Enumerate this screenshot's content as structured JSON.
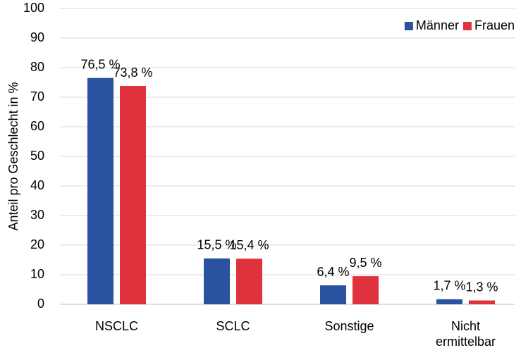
{
  "chart_data": {
    "type": "bar",
    "y_label": "Anteil pro Geschlecht in %",
    "categories": [
      "NSCLC",
      "SCLC",
      "Sonstige",
      "Nicht ermittelbar"
    ],
    "series": [
      {
        "name": "Männer",
        "color": "#2a52a0",
        "values": [
          76.5,
          15.5,
          6.4,
          1.7
        ],
        "value_labels": [
          "76,5 %",
          "15,5 %",
          "6,4 %",
          "1,7 %"
        ]
      },
      {
        "name": "Frauen",
        "color": "#e0323c",
        "values": [
          73.8,
          15.4,
          9.5,
          1.3
        ],
        "value_labels": [
          "73,8 %",
          "15,4 %",
          "9,5 %",
          "1,3 %"
        ]
      }
    ],
    "ylim": [
      0,
      100
    ],
    "yticks": [
      0,
      10,
      20,
      30,
      40,
      50,
      60,
      70,
      80,
      90,
      100
    ],
    "grid": true,
    "legend": "top-right"
  }
}
